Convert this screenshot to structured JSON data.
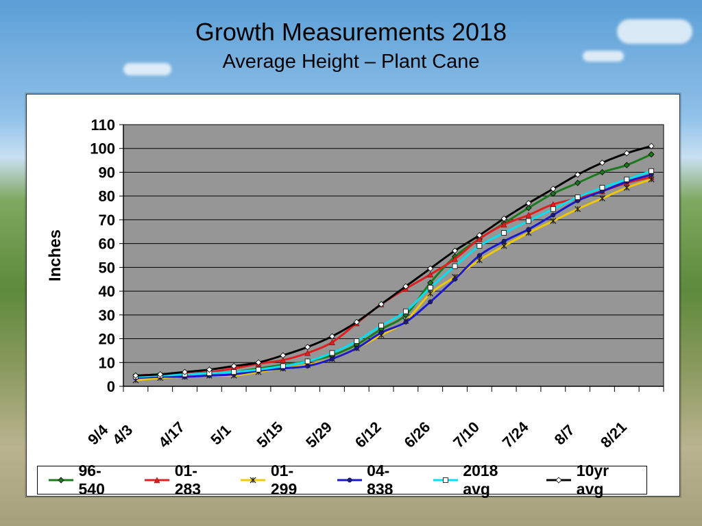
{
  "title": "Growth Measurements 2018",
  "subtitle": "Average Height – Plant Cane",
  "chart_data": {
    "type": "line",
    "title": "Growth Measurements 2018",
    "subtitle": "Average Height – Plant Cane",
    "xlabel": "",
    "ylabel": "Inches",
    "ylim": [
      0,
      110
    ],
    "yticks": [
      0,
      10,
      20,
      30,
      40,
      50,
      60,
      70,
      80,
      90,
      100,
      110
    ],
    "x_tick_labels": [
      "4/3",
      "4/17",
      "5/1",
      "5/15",
      "5/29",
      "6/12",
      "6/26",
      "7/10",
      "7/24",
      "8/7",
      "8/21",
      "9/4"
    ],
    "x": [
      "4/3",
      "4/10",
      "4/17",
      "4/24",
      "5/1",
      "5/8",
      "5/15",
      "5/22",
      "5/29",
      "6/5",
      "6/12",
      "6/19",
      "6/26",
      "7/3",
      "7/10",
      "7/17",
      "7/24",
      "7/31",
      "8/7",
      "8/14",
      "8/21",
      "8/28"
    ],
    "grid": true,
    "legend_position": "bottom",
    "plot_background": "#969696",
    "series": [
      {
        "name": "96-540",
        "color": "#1a7a1a",
        "marker": "diamond",
        "points": [
          [
            "4/3",
            4.5
          ],
          [
            "4/10",
            4.8
          ],
          [
            "4/17",
            5.0
          ],
          [
            "4/24",
            5.5
          ],
          [
            "5/1",
            6.0
          ],
          [
            "5/8",
            7.5
          ],
          [
            "5/15",
            9.0
          ],
          [
            "5/22",
            10.5
          ],
          [
            "5/29",
            13.0
          ],
          [
            "6/5",
            17.5
          ],
          [
            "6/12",
            24.0
          ],
          [
            "6/19",
            30.0
          ],
          [
            "6/26",
            43.5
          ],
          [
            "7/3",
            54.5
          ],
          [
            "7/10",
            62.0
          ],
          [
            "7/17",
            68.5
          ],
          [
            "7/24",
            75.0
          ],
          [
            "7/31",
            81.0
          ],
          [
            "8/7",
            85.5
          ],
          [
            "8/14",
            90.0
          ],
          [
            "8/21",
            93.0
          ],
          [
            "8/28",
            97.5
          ]
        ]
      },
      {
        "name": "01-283",
        "color": "#e02020",
        "marker": "triangle",
        "points": [
          [
            "4/3",
            4.5
          ],
          [
            "4/10",
            5.0
          ],
          [
            "4/17",
            5.5
          ],
          [
            "4/24",
            6.0
          ],
          [
            "5/1",
            7.5
          ],
          [
            "5/8",
            9.5
          ],
          [
            "5/15",
            11.0
          ],
          [
            "5/22",
            14.0
          ],
          [
            "5/29",
            18.5
          ],
          [
            "6/5",
            26.5
          ],
          [
            "6/12",
            34.5
          ],
          [
            "6/19",
            41.0
          ],
          [
            "6/26",
            47.0
          ],
          [
            "7/3",
            53.5
          ],
          [
            "7/10",
            62.0
          ],
          [
            "7/17",
            68.0
          ],
          [
            "7/24",
            72.0
          ],
          [
            "7/31",
            76.5
          ],
          [
            "8/7",
            79.0
          ],
          [
            "8/14",
            82.0
          ],
          [
            "8/21",
            85.5
          ],
          [
            "8/28",
            88.0
          ]
        ]
      },
      {
        "name": "01-299",
        "color": "#f0c800",
        "marker": "star",
        "points": [
          [
            "4/3",
            2.5
          ],
          [
            "4/10",
            3.5
          ],
          [
            "4/17",
            4.0
          ],
          [
            "4/24",
            4.5
          ],
          [
            "5/1",
            4.5
          ],
          [
            "5/8",
            6.0
          ],
          [
            "5/15",
            7.5
          ],
          [
            "5/22",
            9.0
          ],
          [
            "5/29",
            11.5
          ],
          [
            "6/5",
            16.0
          ],
          [
            "6/12",
            21.5
          ],
          [
            "6/19",
            27.5
          ],
          [
            "6/26",
            39.0
          ],
          [
            "7/3",
            46.0
          ],
          [
            "7/10",
            53.0
          ],
          [
            "7/17",
            59.0
          ],
          [
            "7/24",
            64.5
          ],
          [
            "7/31",
            69.5
          ],
          [
            "8/7",
            74.5
          ],
          [
            "8/14",
            79.0
          ],
          [
            "8/21",
            83.5
          ],
          [
            "8/28",
            87.0
          ]
        ]
      },
      {
        "name": "04-838",
        "color": "#1a1acc",
        "marker": "circle",
        "points": [
          [
            "4/3",
            3.5
          ],
          [
            "4/10",
            4.0
          ],
          [
            "4/17",
            4.0
          ],
          [
            "4/24",
            4.5
          ],
          [
            "5/1",
            5.0
          ],
          [
            "5/8",
            6.5
          ],
          [
            "5/15",
            7.5
          ],
          [
            "5/22",
            8.5
          ],
          [
            "5/29",
            11.5
          ],
          [
            "6/5",
            16.0
          ],
          [
            "6/12",
            22.5
          ],
          [
            "6/19",
            27.0
          ],
          [
            "6/26",
            35.5
          ],
          [
            "7/3",
            45.0
          ],
          [
            "7/10",
            55.0
          ],
          [
            "7/17",
            61.0
          ],
          [
            "7/24",
            66.0
          ],
          [
            "7/31",
            72.0
          ],
          [
            "8/7",
            78.0
          ],
          [
            "8/14",
            82.0
          ],
          [
            "8/21",
            86.0
          ],
          [
            "8/28",
            89.0
          ]
        ]
      },
      {
        "name": "2018 avg",
        "color": "#00e0f0",
        "marker": "square",
        "points": [
          [
            "4/3",
            4.0
          ],
          [
            "4/10",
            4.5
          ],
          [
            "4/17",
            5.0
          ],
          [
            "4/24",
            5.5
          ],
          [
            "5/1",
            6.0
          ],
          [
            "5/8",
            7.0
          ],
          [
            "5/15",
            8.5
          ],
          [
            "5/22",
            10.5
          ],
          [
            "5/29",
            14.0
          ],
          [
            "6/5",
            19.0
          ],
          [
            "6/12",
            25.5
          ],
          [
            "6/19",
            31.5
          ],
          [
            "6/26",
            41.5
          ],
          [
            "7/3",
            50.5
          ],
          [
            "7/10",
            59.0
          ],
          [
            "7/17",
            64.5
          ],
          [
            "7/24",
            69.5
          ],
          [
            "7/31",
            74.5
          ],
          [
            "8/7",
            79.5
          ],
          [
            "8/14",
            83.5
          ],
          [
            "8/21",
            87.0
          ],
          [
            "8/28",
            90.5
          ]
        ]
      },
      {
        "name": "10yr avg",
        "color": "#000000",
        "marker": "diamond-open",
        "points": [
          [
            "4/3",
            4.5
          ],
          [
            "4/10",
            5.0
          ],
          [
            "4/17",
            6.0
          ],
          [
            "4/24",
            7.0
          ],
          [
            "5/1",
            8.5
          ],
          [
            "5/8",
            10.0
          ],
          [
            "5/15",
            13.0
          ],
          [
            "5/22",
            16.5
          ],
          [
            "5/29",
            21.0
          ],
          [
            "6/5",
            27.0
          ],
          [
            "6/12",
            34.5
          ],
          [
            "6/19",
            42.0
          ],
          [
            "6/26",
            49.5
          ],
          [
            "7/3",
            57.0
          ],
          [
            "7/10",
            63.5
          ],
          [
            "7/17",
            70.5
          ],
          [
            "7/24",
            77.0
          ],
          [
            "7/31",
            83.0
          ],
          [
            "8/7",
            89.0
          ],
          [
            "8/14",
            94.0
          ],
          [
            "8/21",
            98.0
          ],
          [
            "8/28",
            101.0
          ]
        ]
      }
    ]
  }
}
